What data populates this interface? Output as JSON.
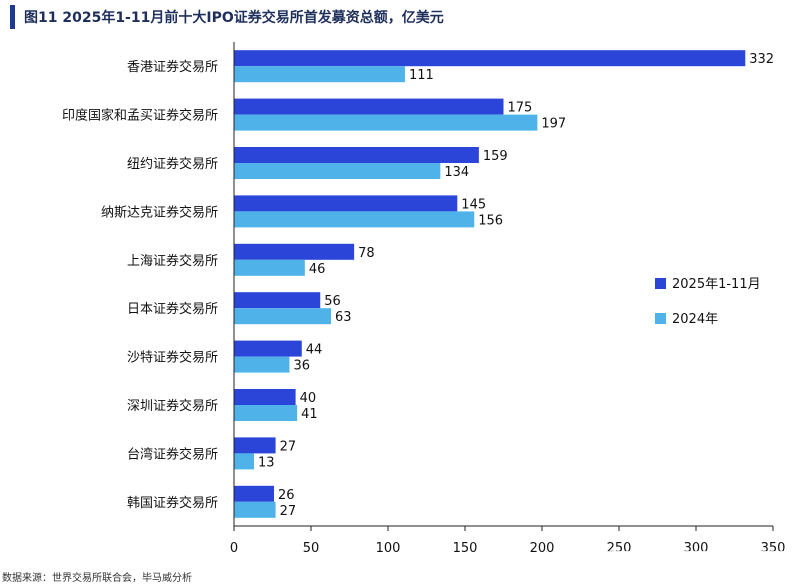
{
  "title": "图11 2025年1-11月前十大IPO证券交易所首发募资总额，亿美元",
  "source": "数据来源：世界交易所联合会，毕马威分析",
  "colors": {
    "series_2025": "#2a45d8",
    "series_2024": "#4fb3ea",
    "axis": "#222222"
  },
  "chart_data": {
    "type": "bar",
    "orientation": "horizontal",
    "categories": [
      "香港证券交易所",
      "印度国家和孟买证券交易所",
      "纽约证券交易所",
      "纳斯达克证券交易所",
      "上海证券交易所",
      "日本证券交易所",
      "沙特证券交易所",
      "深圳证券交易所",
      "台湾证券交易所",
      "韩国证券交易所"
    ],
    "series": [
      {
        "name": "2025年1-11月",
        "values": [
          332,
          175,
          159,
          145,
          78,
          56,
          44,
          40,
          27,
          26
        ]
      },
      {
        "name": "2024年",
        "values": [
          111,
          197,
          134,
          156,
          46,
          63,
          36,
          41,
          13,
          27
        ]
      }
    ],
    "xlim": [
      0,
      350
    ],
    "xticks": [
      0,
      50,
      100,
      150,
      200,
      250,
      300,
      350
    ],
    "grid": false,
    "legend_position": "right"
  }
}
